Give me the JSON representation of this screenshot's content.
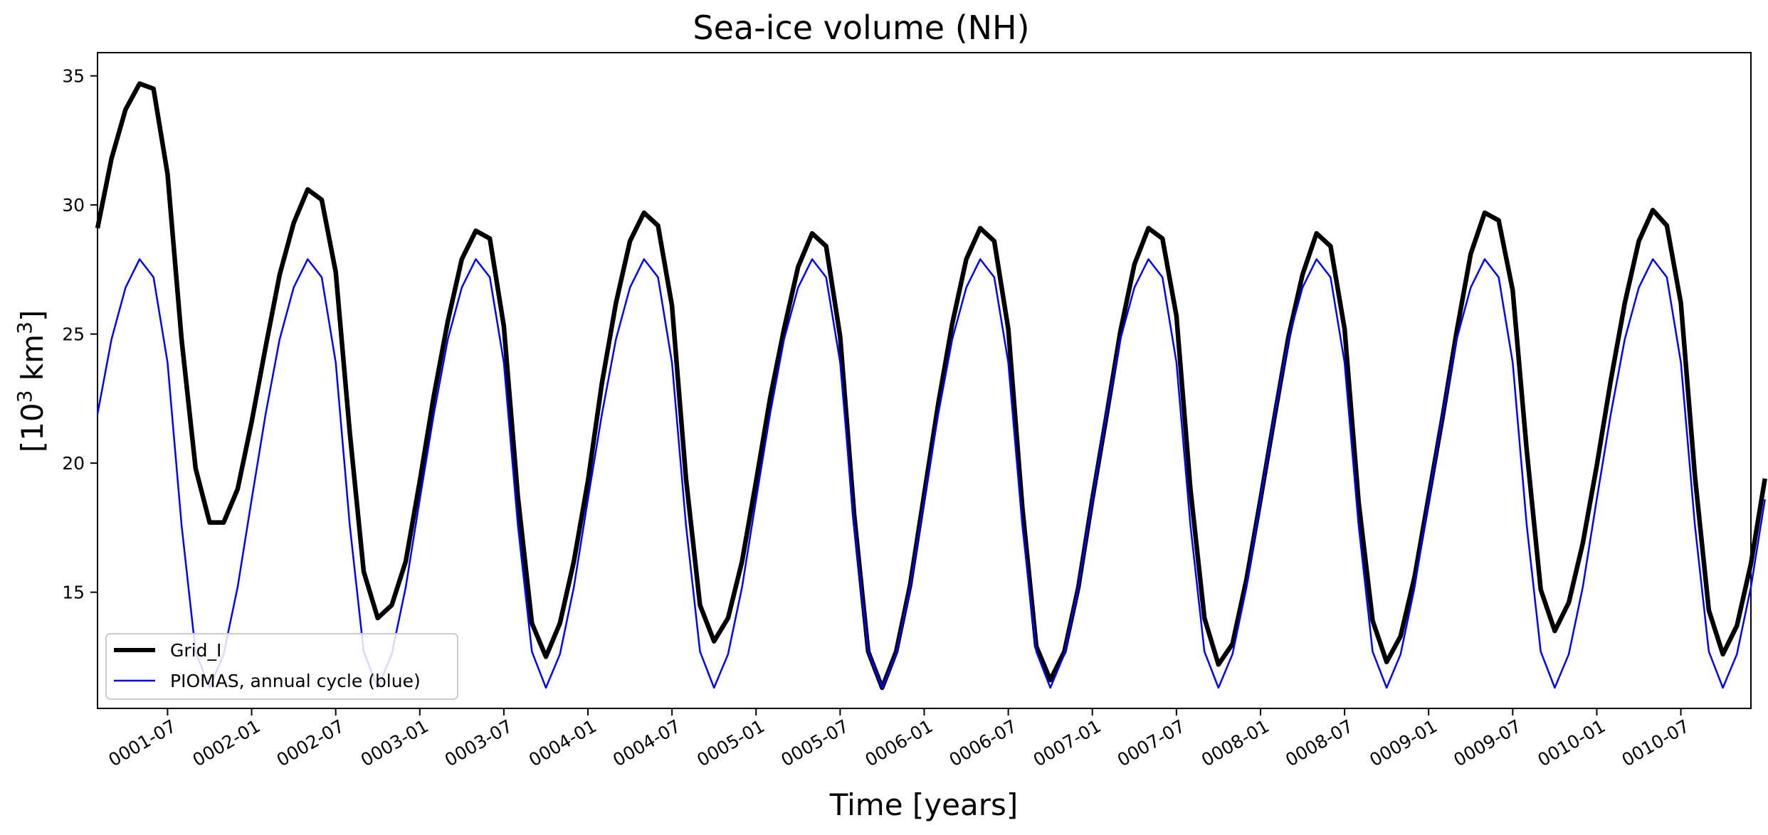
{
  "chart_data": {
    "type": "line",
    "title": "Sea-ice volume (NH)",
    "xlabel": "Time [years]",
    "ylabel_base": "[10",
    "ylabel_sup": "3",
    "ylabel_mid": " km",
    "ylabel_sup2": "3",
    "ylabel_end": "]",
    "xlim": [
      "0001-02-01",
      "0010-12-01"
    ],
    "ylim": [
      10.5,
      35.9
    ],
    "grid": false,
    "legend": "lower-left",
    "xticks": [
      "0001-07",
      "0002-01",
      "0002-07",
      "0003-01",
      "0003-07",
      "0004-01",
      "0004-07",
      "0005-01",
      "0005-07",
      "0006-01",
      "0006-07",
      "0007-01",
      "0007-07",
      "0008-01",
      "0008-07",
      "0009-01",
      "0009-07",
      "0010-01",
      "0010-07"
    ],
    "yticks": [
      15,
      20,
      25,
      30,
      35
    ],
    "x_start": "0001-02",
    "x_step": "1 month",
    "series": [
      {
        "name": "Grid_I",
        "color": "#000000",
        "values": [
          29.1,
          31.8,
          33.7,
          34.7,
          34.5,
          31.2,
          24.8,
          19.8,
          17.7,
          17.7,
          19.0,
          21.6,
          24.5,
          27.3,
          29.3,
          30.6,
          30.2,
          27.4,
          21.2,
          15.8,
          14.0,
          14.5,
          16.2,
          19.3,
          22.6,
          25.5,
          27.9,
          29.0,
          28.7,
          25.3,
          18.7,
          13.8,
          12.5,
          13.8,
          16.2,
          19.3,
          23.1,
          26.2,
          28.6,
          29.7,
          29.2,
          26.1,
          19.4,
          14.5,
          13.1,
          14.0,
          16.2,
          19.3,
          22.5,
          25.2,
          27.6,
          28.9,
          28.4,
          24.9,
          18.0,
          12.7,
          11.3,
          12.7,
          15.3,
          18.8,
          22.3,
          25.4,
          27.9,
          29.1,
          28.6,
          25.2,
          18.3,
          12.9,
          11.6,
          12.7,
          15.2,
          18.6,
          21.8,
          25.1,
          27.7,
          29.1,
          28.7,
          25.7,
          19.0,
          14.0,
          12.2,
          13.0,
          15.5,
          18.6,
          21.8,
          24.9,
          27.3,
          28.9,
          28.4,
          25.2,
          18.5,
          13.9,
          12.3,
          13.3,
          15.6,
          18.7,
          21.8,
          25.1,
          28.1,
          29.7,
          29.4,
          26.7,
          20.5,
          15.1,
          13.5,
          14.6,
          16.9,
          19.9,
          23.2,
          26.2,
          28.6,
          29.8,
          29.2,
          26.2,
          19.5,
          14.3,
          12.6,
          13.7,
          16.1,
          19.4
        ]
      },
      {
        "name": "PIOMAS, annual cycle (blue)",
        "color": "#0000ff",
        "values": [
          21.9,
          24.8,
          26.8,
          27.9,
          27.2,
          23.9,
          17.6,
          12.7,
          11.3,
          12.6,
          15.2,
          18.6,
          21.9,
          24.8,
          26.8,
          27.9,
          27.2,
          23.9,
          17.6,
          12.7,
          11.3,
          12.6,
          15.2,
          18.6,
          21.9,
          24.8,
          26.8,
          27.9,
          27.2,
          23.9,
          17.6,
          12.7,
          11.3,
          12.6,
          15.2,
          18.6,
          21.9,
          24.8,
          26.8,
          27.9,
          27.2,
          23.9,
          17.6,
          12.7,
          11.3,
          12.6,
          15.2,
          18.6,
          21.9,
          24.8,
          26.8,
          27.9,
          27.2,
          23.9,
          17.6,
          12.7,
          11.3,
          12.6,
          15.2,
          18.6,
          21.9,
          24.8,
          26.8,
          27.9,
          27.2,
          23.9,
          17.6,
          12.7,
          11.3,
          12.6,
          15.2,
          18.6,
          21.9,
          24.8,
          26.8,
          27.9,
          27.2,
          23.9,
          17.6,
          12.7,
          11.3,
          12.6,
          15.2,
          18.6,
          21.9,
          24.8,
          26.8,
          27.9,
          27.2,
          23.9,
          17.6,
          12.7,
          11.3,
          12.6,
          15.2,
          18.6,
          21.9,
          24.8,
          26.8,
          27.9,
          27.2,
          23.9,
          17.6,
          12.7,
          11.3,
          12.6,
          15.2,
          18.6,
          21.9,
          24.8,
          26.8,
          27.9,
          27.2,
          23.9,
          17.6,
          12.7,
          11.3,
          12.6,
          15.2,
          18.6
        ]
      }
    ]
  }
}
